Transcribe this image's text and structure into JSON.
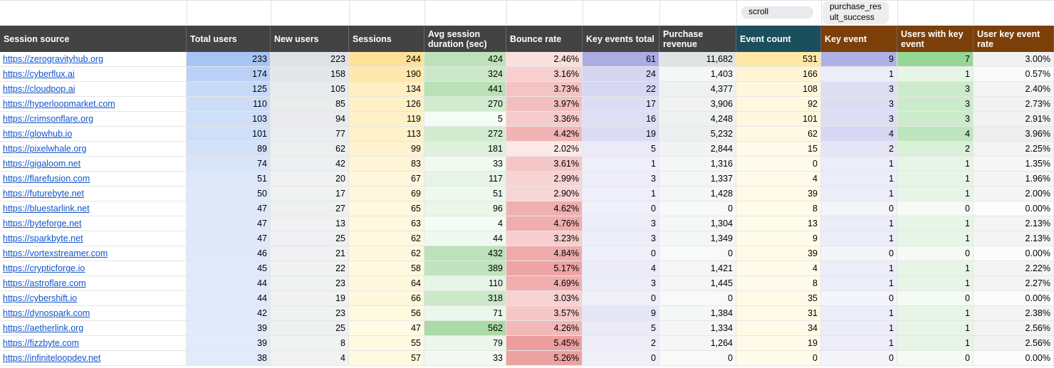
{
  "filters": {
    "event_count": "scroll",
    "key_event": "purchase_result_success"
  },
  "headers": [
    "Session source",
    "Total users",
    "New users",
    "Sessions",
    "Avg session duration (sec)",
    "Bounce rate",
    "Key events total",
    "Purchase revenue",
    "Event count",
    "Key event",
    "Users with key event",
    "User key event rate"
  ],
  "rows": [
    [
      "https://zerogravityhub.org",
      "233",
      "223",
      "244",
      "424",
      "2.46%",
      "61",
      "11,682",
      "531",
      "9",
      "7",
      "3.00%"
    ],
    [
      "https://cyberflux.ai",
      "174",
      "158",
      "190",
      "324",
      "3.16%",
      "24",
      "1,403",
      "166",
      "1",
      "1",
      "0.57%"
    ],
    [
      "https://cloudpop.ai",
      "125",
      "105",
      "134",
      "441",
      "3.73%",
      "22",
      "4,377",
      "108",
      "3",
      "3",
      "2.40%"
    ],
    [
      "https://hyperloopmarket.com",
      "110",
      "85",
      "126",
      "270",
      "3.97%",
      "17",
      "3,906",
      "92",
      "3",
      "3",
      "2.73%"
    ],
    [
      "https://crimsonflare.org",
      "103",
      "94",
      "119",
      "5",
      "3.36%",
      "16",
      "4,248",
      "101",
      "3",
      "3",
      "2.91%"
    ],
    [
      "https://glowhub.io",
      "101",
      "77",
      "113",
      "272",
      "4.42%",
      "19",
      "5,232",
      "62",
      "4",
      "4",
      "3.96%"
    ],
    [
      "https://pixelwhale.org",
      "89",
      "62",
      "99",
      "181",
      "2.02%",
      "5",
      "2,844",
      "15",
      "2",
      "2",
      "2.25%"
    ],
    [
      "https://gigaloom.net",
      "74",
      "42",
      "83",
      "33",
      "3.61%",
      "1",
      "1,316",
      "0",
      "1",
      "1",
      "1.35%"
    ],
    [
      "https://flarefusion.com",
      "51",
      "20",
      "67",
      "117",
      "2.99%",
      "3",
      "1,337",
      "4",
      "1",
      "1",
      "1.96%"
    ],
    [
      "https://futurebyte.net",
      "50",
      "17",
      "69",
      "51",
      "2.90%",
      "1",
      "1,428",
      "39",
      "1",
      "1",
      "2.00%"
    ],
    [
      "https://bluestarlink.net",
      "47",
      "27",
      "65",
      "96",
      "4.62%",
      "0",
      "0",
      "8",
      "0",
      "0",
      "0.00%"
    ],
    [
      "https://byteforge.net",
      "47",
      "13",
      "63",
      "4",
      "4.76%",
      "3",
      "1,304",
      "13",
      "1",
      "1",
      "2.13%"
    ],
    [
      "https://sparkbyte.net",
      "47",
      "25",
      "62",
      "44",
      "3.23%",
      "3",
      "1,349",
      "9",
      "1",
      "1",
      "2.13%"
    ],
    [
      "https://vortexstreamer.com",
      "46",
      "21",
      "62",
      "432",
      "4.84%",
      "0",
      "0",
      "39",
      "0",
      "0",
      "0.00%"
    ],
    [
      "https://crypticforge.io",
      "45",
      "22",
      "58",
      "389",
      "5.17%",
      "4",
      "1,421",
      "4",
      "1",
      "1",
      "2.22%"
    ],
    [
      "https://astroflare.com",
      "44",
      "23",
      "64",
      "110",
      "4.69%",
      "3",
      "1,445",
      "8",
      "1",
      "1",
      "2.27%"
    ],
    [
      "https://cybershift.io",
      "44",
      "19",
      "66",
      "318",
      "3.03%",
      "0",
      "0",
      "35",
      "0",
      "0",
      "0.00%"
    ],
    [
      "https://dynospark.com",
      "42",
      "23",
      "56",
      "71",
      "3.57%",
      "9",
      "1,384",
      "31",
      "1",
      "1",
      "2.38%"
    ],
    [
      "https://aetherlink.org",
      "39",
      "25",
      "47",
      "562",
      "4.26%",
      "5",
      "1,334",
      "34",
      "1",
      "1",
      "2.56%"
    ],
    [
      "https://fizzbyte.com",
      "39",
      "8",
      "55",
      "79",
      "5.45%",
      "2",
      "1,264",
      "19",
      "1",
      "1",
      "2.56%"
    ],
    [
      "https://infiniteloopdev.net",
      "38",
      "4",
      "57",
      "33",
      "5.26%",
      "0",
      "0",
      "0",
      "0",
      "0",
      "0.00%"
    ]
  ],
  "colors": {
    "header_default": "#434343",
    "header_event_count": "#1b4f5c",
    "header_key_event": "#7b3f0a",
    "filter_chip_scroll": "#e8eaed",
    "filter_chip_event": "#ededed",
    "link": "#1155cc"
  }
}
